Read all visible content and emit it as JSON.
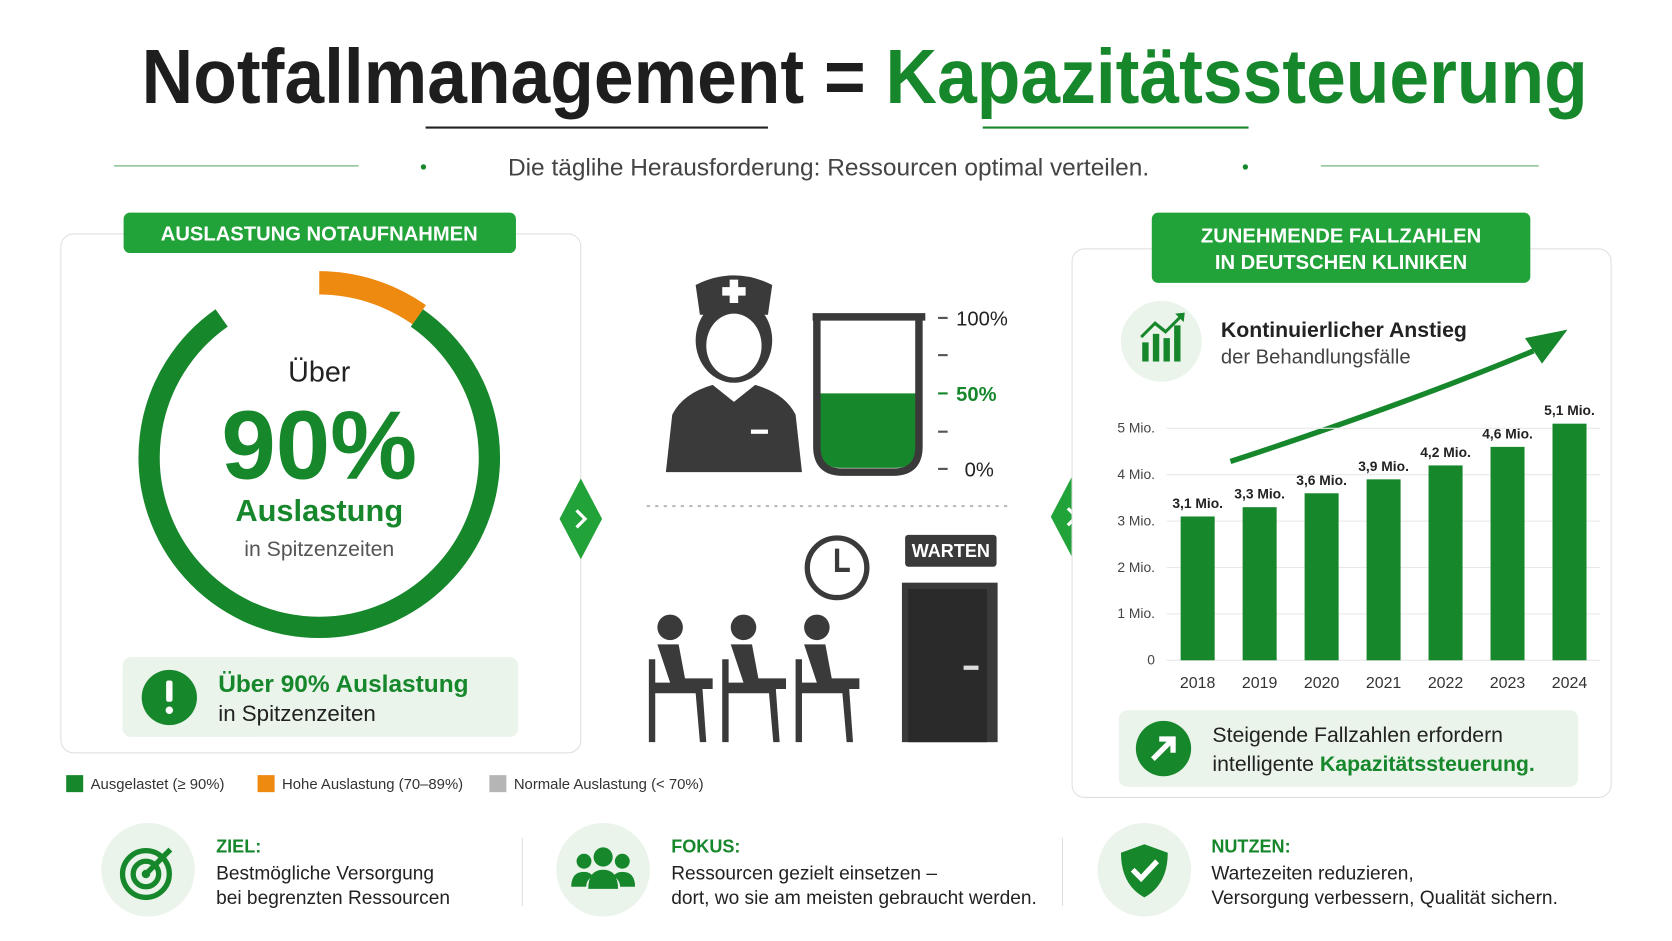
{
  "header": {
    "title": "Notfallmanagement =",
    "title_highlight": "Kapazitätssteuerung",
    "subtitle": "Die täglihe Herausforderung: Ressourcen optimal verteilen."
  },
  "left_panel": {
    "badge": "AUSLASTUNG NOTAUFNAHMEN",
    "gauge": {
      "prefix": "Über",
      "value": "90%",
      "label": "Auslastung",
      "caption": "in Spitzenzeiten"
    },
    "alert": {
      "line1": "Über 90% Auslastung",
      "line2": "in Spitzenzeiten"
    },
    "legend": [
      {
        "label": "Ausgelastet (≥ 90%)",
        "color": "#17872c"
      },
      {
        "label": "Hohe Auslastung (70–89%)",
        "color": "#ee8a10"
      },
      {
        "label": "Normale Auslastung (< 70%)",
        "color": "#b5b5b5"
      }
    ]
  },
  "middle": {
    "beaker_labels": [
      "100%",
      "50%",
      "0%"
    ],
    "sign": "WARTEN"
  },
  "right_panel": {
    "badge_lines": [
      "ZUNEHMENDE FALLZAHLEN",
      "IN DEUTSCHEN KLINIKEN"
    ],
    "heading": "Kontinuierlicher Anstieg",
    "subheading": "der Behandlungsfälle",
    "note_line1": "Steigende Fallzahlen erfordern",
    "note_line2": "intelligente",
    "note_highlight": "Kapazitätssteuerung."
  },
  "chart_data": {
    "type": "bar",
    "categories": [
      "2018",
      "2019",
      "2020",
      "2021",
      "2022",
      "2023",
      "2024"
    ],
    "values": [
      3.1,
      3.3,
      3.6,
      3.9,
      4.2,
      4.6,
      5.1
    ],
    "value_labels": [
      "3,1 Mio.",
      "3,3 Mio.",
      "3,6 Mio.",
      "3,9 Mio.",
      "4,2 Mio.",
      "4,6 Mio.",
      "5,1 Mio."
    ],
    "color": "#17872c",
    "ylim": [
      0,
      5.5
    ],
    "yticks": [
      0,
      {
        "value": 1,
        "label": "1 Mio."
      },
      {
        "value": 2,
        "label": "2 Mio."
      },
      {
        "value": 3,
        "label": "3 Mio."
      },
      {
        "value": 4,
        "label": "4 Mio."
      },
      {
        "value": 5,
        "label": "5 Mio."
      }
    ],
    "grid": true
  },
  "footer": {
    "items": [
      {
        "label": "ZIEL:",
        "lines": [
          "Bestmögliche Versorgung",
          "bei begrenzten Ressourcen"
        ]
      },
      {
        "label": "FOKUS:",
        "lines": [
          "Ressourcen gezielt einsetzen –",
          "dort, wo sie am meisten gebraucht werden."
        ]
      },
      {
        "label": "NUTZEN:",
        "lines": [
          "Wartezeiten reduzieren,",
          "Versorgung verbessern, Qualität sichern."
        ]
      }
    ]
  }
}
